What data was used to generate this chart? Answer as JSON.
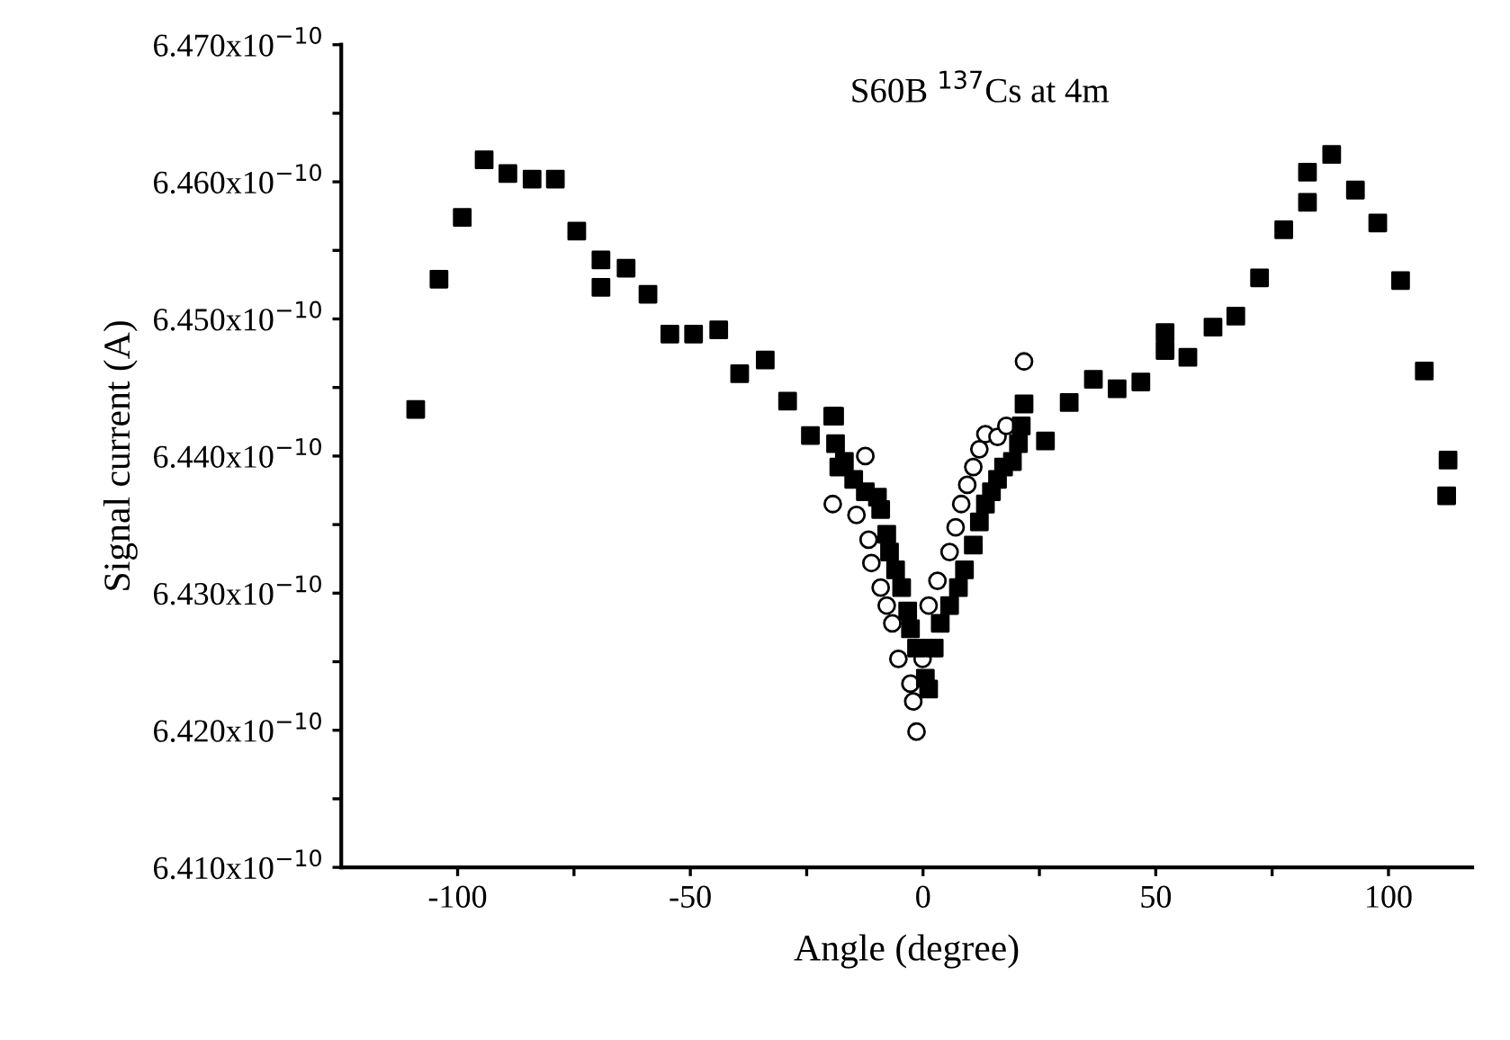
{
  "chart_data": {
    "type": "scatter",
    "xlabel": "Angle (degree)",
    "ylabel": "Signal current (A)",
    "annotations": [
      "S60B $^{137}$Cs at 4m"
    ],
    "xlim": [
      -125,
      118
    ],
    "xticks": [
      -100,
      {
        "value": -75,
        "label": null
      },
      -50,
      {
        "value": -25,
        "label": null
      },
      0,
      {
        "value": 25,
        "label": null
      },
      50,
      {
        "value": 75,
        "label": null
      },
      100
    ],
    "ylim": [
      6.41e-10,
      6.47e-10
    ],
    "yticks": [
      {
        "value": 6.41e-10,
        "label": "6.410x10$^{−10}$"
      },
      {
        "value": 6.415e-10,
        "label": null
      },
      {
        "value": 6.42e-10,
        "label": "6.420x10$^{−10}$"
      },
      {
        "value": 6.425e-10,
        "label": null
      },
      {
        "value": 6.43e-10,
        "label": "6.430x10$^{−10}$"
      },
      {
        "value": 6.435e-10,
        "label": null
      },
      {
        "value": 6.44e-10,
        "label": "6.440x10$^{−10}$"
      },
      {
        "value": 6.445e-10,
        "label": null
      },
      {
        "value": 6.45e-10,
        "label": "6.450x10$^{−10}$"
      },
      {
        "value": 6.455e-10,
        "label": null
      },
      {
        "value": 6.46e-10,
        "label": "6.460x10$^{−10}$"
      },
      {
        "value": 6.465e-10,
        "label": null
      },
      {
        "value": 6.47e-10,
        "label": "6.470x10$^{−10}$"
      }
    ],
    "grid": false,
    "legend": false,
    "series": [
      {
        "color": "#000000",
        "marker": "square",
        "x": [
          -109,
          -104,
          -99,
          -94.3,
          -89.2,
          -84,
          -79,
          -74.4,
          -69.2,
          -69.2,
          -63.8,
          -59.1,
          -54.4,
          -49.3,
          -43.9,
          -39.4,
          -33.9,
          -29.1,
          -24.2,
          -19,
          -19.4,
          -18.8,
          -18.1,
          -16.9,
          -14.9,
          -12.4,
          -9.8,
          -9.1,
          -7.8,
          -7.2,
          -5.9,
          -4.6,
          -3.3,
          -2.7,
          -1.4,
          0.5,
          1.2,
          2.4,
          3.7,
          5.7,
          7.6,
          8.9,
          10.8,
          12.1,
          13.4,
          14.7,
          16.0,
          17.3,
          19.2,
          20.5,
          21.1,
          21.7,
          26.3,
          31.4,
          36.6,
          41.7,
          46.8,
          52,
          52,
          56.9,
          62.3,
          67.2,
          72.3,
          77.5,
          82.6,
          82.6,
          87.8,
          92.9,
          97.7,
          102.6,
          107.7,
          112.8,
          112.5
        ],
        "values": [
          6.4434e-10,
          6.4529e-10,
          6.4574e-10,
          6.4616e-10,
          6.4606e-10,
          6.4602e-10,
          6.4602e-10,
          6.4564e-10,
          6.4543e-10,
          6.4523e-10,
          6.4537e-10,
          6.4518e-10,
          6.4489e-10,
          6.4489e-10,
          6.4492e-10,
          6.446e-10,
          6.447e-10,
          6.444e-10,
          6.4415e-10,
          6.4429e-10,
          6.4429e-10,
          6.4409e-10,
          6.4392e-10,
          6.4396e-10,
          6.4383e-10,
          6.4374e-10,
          6.437e-10,
          6.4361e-10,
          6.4343e-10,
          6.433e-10,
          6.4317e-10,
          6.4304e-10,
          6.4287e-10,
          6.4274e-10,
          6.426e-10,
          6.4238e-10,
          6.423e-10,
          6.426e-10,
          6.4278e-10,
          6.4291e-10,
          6.4304e-10,
          6.4317e-10,
          6.4335e-10,
          6.4352e-10,
          6.4365e-10,
          6.4374e-10,
          6.4383e-10,
          6.4392e-10,
          6.4396e-10,
          6.4409e-10,
          6.4422e-10,
          6.4438e-10,
          6.4411e-10,
          6.4439e-10,
          6.4456e-10,
          6.4449e-10,
          6.4454e-10,
          6.449e-10,
          6.4477e-10,
          6.4472e-10,
          6.4494e-10,
          6.4502e-10,
          6.453e-10,
          6.4565e-10,
          6.4585e-10,
          6.4607e-10,
          6.462e-10,
          6.4594e-10,
          6.457e-10,
          6.4528e-10,
          6.4462e-10,
          6.4397e-10,
          6.4371e-10
        ]
      },
      {
        "color": "#000000",
        "marker": "circle",
        "x": [
          -19.4,
          -14.3,
          -12.4,
          -11.7,
          -11.1,
          -9.1,
          -7.8,
          -6.6,
          -5.3,
          -2.7,
          -2.1,
          -1.4,
          -0.1,
          1.2,
          3.1,
          5.7,
          7.0,
          8.2,
          9.5,
          10.8,
          12.1,
          13.4,
          16.0,
          17.9,
          21.7
        ],
        "values": [
          6.4365e-10,
          6.4357e-10,
          6.44e-10,
          6.4339e-10,
          6.4322e-10,
          6.4304e-10,
          6.4291e-10,
          6.4278e-10,
          6.4252e-10,
          6.4234e-10,
          6.4221e-10,
          6.4199e-10,
          6.4252e-10,
          6.4291e-10,
          6.4309e-10,
          6.433e-10,
          6.4348e-10,
          6.4365e-10,
          6.4379e-10,
          6.4392e-10,
          6.4405e-10,
          6.4416e-10,
          6.4414e-10,
          6.4422e-10,
          6.4469e-10
        ]
      }
    ]
  }
}
